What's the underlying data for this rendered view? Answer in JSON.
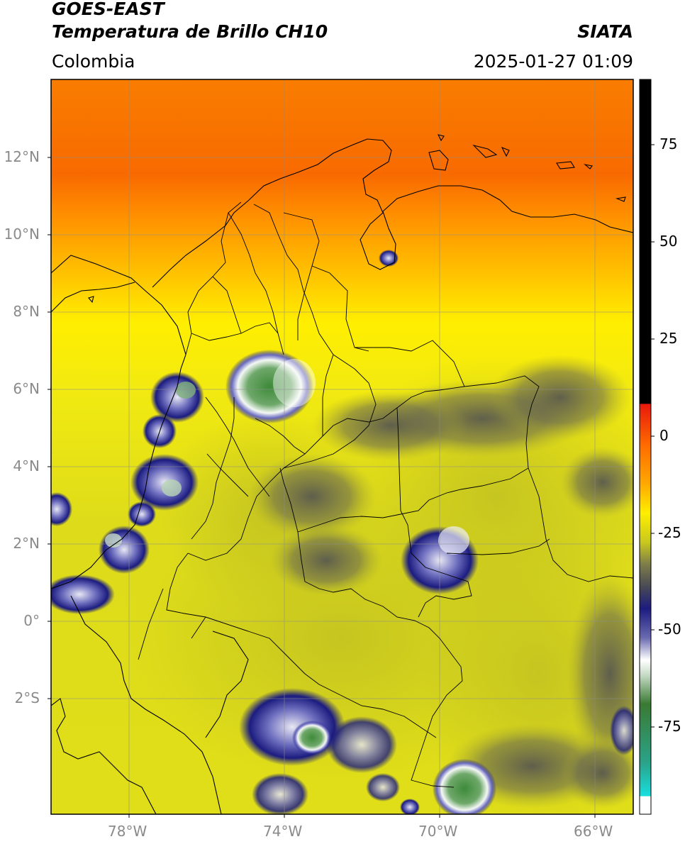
{
  "header": {
    "satellite": "GOES-EAST",
    "product": "Temperatura de Brillo CH10",
    "org": "SIATA",
    "region": "Colombia",
    "datetime": "2025-01-27 01:09"
  },
  "map": {
    "lat_ticks": [
      "12°N",
      "10°N",
      "8°N",
      "6°N",
      "4°N",
      "2°N",
      "0°",
      "2°S"
    ],
    "lon_ticks": [
      "78°W",
      "74°W",
      "70°W",
      "66°W"
    ]
  },
  "colorbar": {
    "ticks": [
      "75",
      "50",
      "25",
      "0",
      "-25",
      "-50",
      "-75"
    ],
    "colors": {
      "black": "#000000",
      "red": "#e8190c",
      "orange": "#ff8c00",
      "yellow": "#ffee00",
      "olive": "#c8c81e",
      "gray": "#4a4a55",
      "navy": "#1c1c80",
      "white": "#ffffff",
      "green": "#3a7a33",
      "teal": "#2aa389",
      "cyan": "#18dede"
    }
  }
}
